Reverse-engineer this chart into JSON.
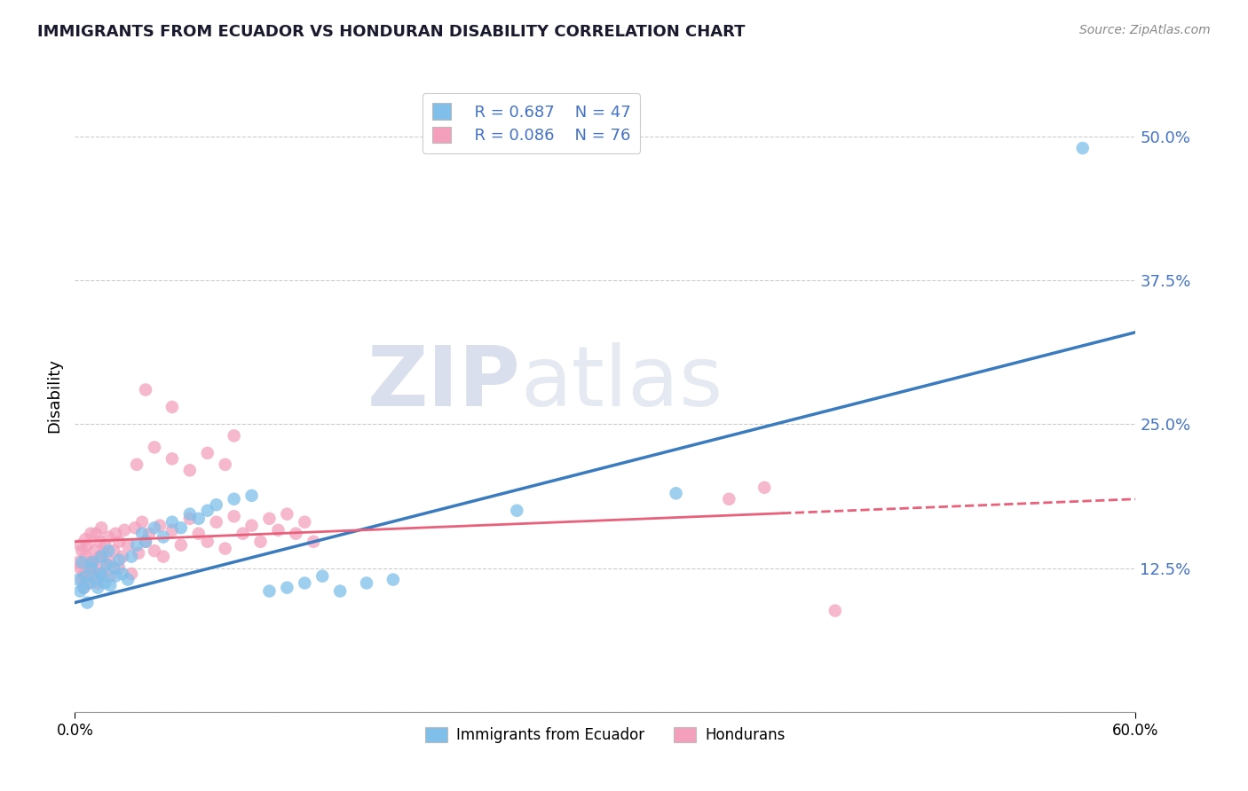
{
  "title": "IMMIGRANTS FROM ECUADOR VS HONDURAN DISABILITY CORRELATION CHART",
  "source_text": "Source: ZipAtlas.com",
  "ylabel": "Disability",
  "xlim": [
    0.0,
    0.6
  ],
  "ylim": [
    0.0,
    0.55
  ],
  "yticks": [
    0.0,
    0.125,
    0.25,
    0.375,
    0.5
  ],
  "ytick_labels": [
    "",
    "12.5%",
    "25.0%",
    "37.5%",
    "50.0%"
  ],
  "legend_r1": "R = 0.687",
  "legend_n1": "N = 47",
  "legend_r2": "R = 0.086",
  "legend_n2": "N = 76",
  "color_ecuador": "#7fbfea",
  "color_honduras": "#f4a0bc",
  "color_line_ecuador": "#3a7bbf",
  "color_line_honduras": "#e8607a",
  "watermark_zip": "ZIP",
  "watermark_atlas": "atlas",
  "ecuador_scatter": [
    [
      0.002,
      0.115
    ],
    [
      0.003,
      0.105
    ],
    [
      0.004,
      0.13
    ],
    [
      0.005,
      0.108
    ],
    [
      0.006,
      0.118
    ],
    [
      0.007,
      0.095
    ],
    [
      0.008,
      0.112
    ],
    [
      0.009,
      0.125
    ],
    [
      0.01,
      0.13
    ],
    [
      0.012,
      0.115
    ],
    [
      0.013,
      0.108
    ],
    [
      0.014,
      0.12
    ],
    [
      0.015,
      0.135
    ],
    [
      0.016,
      0.118
    ],
    [
      0.017,
      0.112
    ],
    [
      0.018,
      0.128
    ],
    [
      0.019,
      0.14
    ],
    [
      0.02,
      0.11
    ],
    [
      0.022,
      0.125
    ],
    [
      0.023,
      0.118
    ],
    [
      0.025,
      0.132
    ],
    [
      0.027,
      0.12
    ],
    [
      0.03,
      0.115
    ],
    [
      0.032,
      0.135
    ],
    [
      0.035,
      0.145
    ],
    [
      0.038,
      0.155
    ],
    [
      0.04,
      0.148
    ],
    [
      0.045,
      0.16
    ],
    [
      0.05,
      0.152
    ],
    [
      0.055,
      0.165
    ],
    [
      0.06,
      0.16
    ],
    [
      0.065,
      0.172
    ],
    [
      0.07,
      0.168
    ],
    [
      0.075,
      0.175
    ],
    [
      0.08,
      0.18
    ],
    [
      0.09,
      0.185
    ],
    [
      0.1,
      0.188
    ],
    [
      0.11,
      0.105
    ],
    [
      0.12,
      0.108
    ],
    [
      0.13,
      0.112
    ],
    [
      0.14,
      0.118
    ],
    [
      0.15,
      0.105
    ],
    [
      0.165,
      0.112
    ],
    [
      0.18,
      0.115
    ],
    [
      0.25,
      0.175
    ],
    [
      0.34,
      0.19
    ],
    [
      0.57,
      0.49
    ]
  ],
  "honduras_scatter": [
    [
      0.002,
      0.13
    ],
    [
      0.003,
      0.125
    ],
    [
      0.003,
      0.145
    ],
    [
      0.004,
      0.115
    ],
    [
      0.004,
      0.14
    ],
    [
      0.005,
      0.12
    ],
    [
      0.005,
      0.108
    ],
    [
      0.006,
      0.135
    ],
    [
      0.006,
      0.15
    ],
    [
      0.007,
      0.118
    ],
    [
      0.007,
      0.145
    ],
    [
      0.008,
      0.112
    ],
    [
      0.008,
      0.13
    ],
    [
      0.009,
      0.125
    ],
    [
      0.009,
      0.155
    ],
    [
      0.01,
      0.13
    ],
    [
      0.01,
      0.118
    ],
    [
      0.011,
      0.14
    ],
    [
      0.012,
      0.125
    ],
    [
      0.012,
      0.155
    ],
    [
      0.013,
      0.112
    ],
    [
      0.014,
      0.135
    ],
    [
      0.014,
      0.148
    ],
    [
      0.015,
      0.12
    ],
    [
      0.015,
      0.16
    ],
    [
      0.016,
      0.138
    ],
    [
      0.017,
      0.145
    ],
    [
      0.018,
      0.128
    ],
    [
      0.019,
      0.152
    ],
    [
      0.02,
      0.13
    ],
    [
      0.02,
      0.118
    ],
    [
      0.022,
      0.14
    ],
    [
      0.023,
      0.155
    ],
    [
      0.025,
      0.125
    ],
    [
      0.025,
      0.148
    ],
    [
      0.027,
      0.135
    ],
    [
      0.028,
      0.158
    ],
    [
      0.03,
      0.145
    ],
    [
      0.032,
      0.12
    ],
    [
      0.034,
      0.16
    ],
    [
      0.036,
      0.138
    ],
    [
      0.038,
      0.165
    ],
    [
      0.04,
      0.148
    ],
    [
      0.042,
      0.155
    ],
    [
      0.045,
      0.14
    ],
    [
      0.048,
      0.162
    ],
    [
      0.05,
      0.135
    ],
    [
      0.055,
      0.158
    ],
    [
      0.06,
      0.145
    ],
    [
      0.065,
      0.168
    ],
    [
      0.07,
      0.155
    ],
    [
      0.075,
      0.148
    ],
    [
      0.08,
      0.165
    ],
    [
      0.085,
      0.142
    ],
    [
      0.09,
      0.17
    ],
    [
      0.095,
      0.155
    ],
    [
      0.1,
      0.162
    ],
    [
      0.105,
      0.148
    ],
    [
      0.11,
      0.168
    ],
    [
      0.115,
      0.158
    ],
    [
      0.12,
      0.172
    ],
    [
      0.125,
      0.155
    ],
    [
      0.13,
      0.165
    ],
    [
      0.135,
      0.148
    ],
    [
      0.065,
      0.21
    ],
    [
      0.075,
      0.225
    ],
    [
      0.085,
      0.215
    ],
    [
      0.04,
      0.28
    ],
    [
      0.055,
      0.265
    ],
    [
      0.09,
      0.24
    ],
    [
      0.035,
      0.215
    ],
    [
      0.045,
      0.23
    ],
    [
      0.055,
      0.22
    ],
    [
      0.37,
      0.185
    ],
    [
      0.39,
      0.195
    ],
    [
      0.43,
      0.088
    ]
  ],
  "ecuador_line_x": [
    0.0,
    0.6
  ],
  "ecuador_line_y": [
    0.095,
    0.33
  ],
  "honduras_line_x": [
    0.0,
    0.6
  ],
  "honduras_line_y": [
    0.148,
    0.185
  ],
  "honduras_line_solid_end": 0.4,
  "grid_color": "#cccccc",
  "axis_color": "#999999",
  "title_color": "#1a1a2e",
  "source_color": "#888888",
  "label_color": "#4472c4"
}
